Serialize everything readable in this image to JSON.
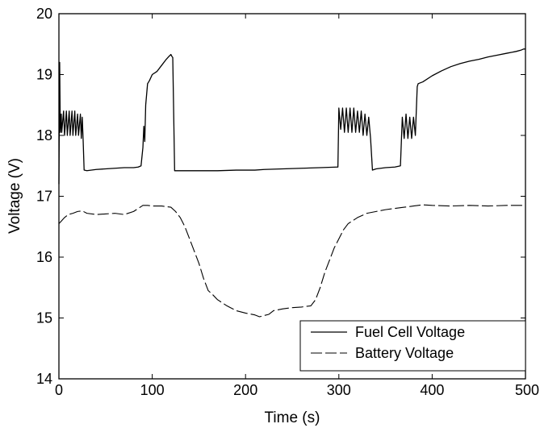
{
  "chart_data": {
    "type": "line",
    "title": "",
    "xlabel": "Time (s)",
    "ylabel": "Voltage (V)",
    "xlim": [
      0,
      500
    ],
    "ylim": [
      14,
      20
    ],
    "xticks": [
      "0",
      "100",
      "200",
      "300",
      "400",
      "500"
    ],
    "yticks": [
      "14",
      "15",
      "16",
      "17",
      "18",
      "19",
      "20"
    ],
    "grid": false,
    "legend_position": "bottom-right",
    "colors": {
      "axis": "#000000",
      "fuel_cell": "#000000",
      "battery": "#000000"
    },
    "series": [
      {
        "name": "Fuel Cell Voltage",
        "style": "solid",
        "x": [
          0,
          0.8,
          1.5,
          2.5,
          3,
          5,
          6,
          8,
          9,
          11,
          12,
          14,
          15,
          17,
          18,
          20,
          21,
          23,
          24,
          25,
          26,
          27,
          30,
          40,
          50,
          60,
          70,
          80,
          85,
          88,
          90,
          91,
          92,
          93,
          95,
          97,
          100,
          105,
          110,
          115,
          118,
          120,
          121,
          122,
          124,
          130,
          150,
          170,
          190,
          200,
          210,
          220,
          240,
          260,
          280,
          298,
          299,
          300,
          302,
          304,
          306,
          308,
          310,
          312,
          314,
          316,
          318,
          320,
          322,
          324,
          326,
          328,
          330,
          332,
          334,
          336,
          340,
          350,
          360,
          366,
          367,
          368,
          370,
          372,
          374,
          376,
          378,
          380,
          382,
          383,
          384,
          385,
          390,
          400,
          410,
          420,
          430,
          440,
          450,
          460,
          470,
          480,
          490,
          495,
          498,
          500
        ],
        "y": [
          17.2,
          19.2,
          18.05,
          18.35,
          18.05,
          18.4,
          18.0,
          18.4,
          18.0,
          18.4,
          18.0,
          18.4,
          18.0,
          18.4,
          18.0,
          18.35,
          18.0,
          18.35,
          17.95,
          18.3,
          17.9,
          17.43,
          17.42,
          17.44,
          17.45,
          17.46,
          17.47,
          17.47,
          17.48,
          17.5,
          17.8,
          18.15,
          17.9,
          18.5,
          18.85,
          18.9,
          19.0,
          19.05,
          19.15,
          19.25,
          19.3,
          19.33,
          19.3,
          19.28,
          17.42,
          17.42,
          17.42,
          17.42,
          17.43,
          17.43,
          17.43,
          17.44,
          17.45,
          17.46,
          17.47,
          17.48,
          17.48,
          18.45,
          18.1,
          18.45,
          18.05,
          18.45,
          18.05,
          18.45,
          18.05,
          18.45,
          18.05,
          18.4,
          18.05,
          18.4,
          18.0,
          18.35,
          18.0,
          18.3,
          17.95,
          17.43,
          17.45,
          17.47,
          17.48,
          17.5,
          17.9,
          18.3,
          17.95,
          18.35,
          17.95,
          18.3,
          17.95,
          18.3,
          18.0,
          18.4,
          18.8,
          18.85,
          18.88,
          18.98,
          19.06,
          19.13,
          19.18,
          19.22,
          19.25,
          19.29,
          19.32,
          19.35,
          19.38,
          19.4,
          19.42,
          19.42
        ]
      },
      {
        "name": "Battery Voltage",
        "style": "dashed",
        "x": [
          0,
          3,
          6,
          10,
          15,
          20,
          25,
          30,
          40,
          50,
          60,
          70,
          80,
          85,
          90,
          95,
          100,
          110,
          120,
          125,
          130,
          135,
          140,
          145,
          150,
          155,
          160,
          165,
          170,
          180,
          190,
          200,
          210,
          215,
          220,
          225,
          230,
          240,
          250,
          260,
          270,
          275,
          280,
          285,
          290,
          295,
          300,
          305,
          310,
          320,
          330,
          340,
          350,
          360,
          370,
          380,
          390,
          400,
          420,
          440,
          460,
          480,
          500
        ],
        "y": [
          16.55,
          16.6,
          16.65,
          16.7,
          16.72,
          16.75,
          16.76,
          16.72,
          16.7,
          16.71,
          16.72,
          16.7,
          16.75,
          16.8,
          16.85,
          16.85,
          16.84,
          16.84,
          16.82,
          16.75,
          16.65,
          16.5,
          16.3,
          16.1,
          15.9,
          15.65,
          15.45,
          15.38,
          15.3,
          15.2,
          15.12,
          15.08,
          15.05,
          15.02,
          15.04,
          15.06,
          15.12,
          15.15,
          15.17,
          15.18,
          15.2,
          15.3,
          15.5,
          15.75,
          15.95,
          16.15,
          16.3,
          16.45,
          16.55,
          16.65,
          16.72,
          16.75,
          16.78,
          16.8,
          16.82,
          16.84,
          16.86,
          16.85,
          16.84,
          16.85,
          16.84,
          16.85,
          16.85
        ]
      }
    ]
  }
}
